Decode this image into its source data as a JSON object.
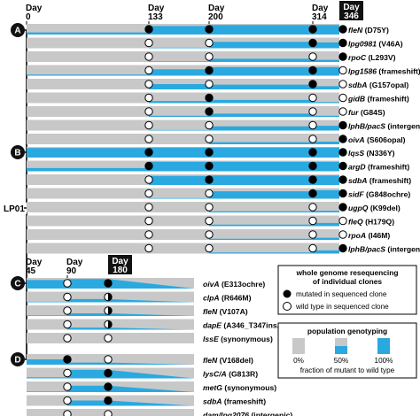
{
  "origin_label": "LP01",
  "panels": [
    {
      "id": "A",
      "days": [
        {
          "label": "Day",
          "value": "0"
        },
        {
          "label": "Day",
          "value": "133"
        },
        {
          "label": "Day",
          "value": "200"
        },
        {
          "label": "Day",
          "value": "314"
        },
        {
          "label": "Day",
          "value": "346",
          "boxed": true
        }
      ],
      "rows": [
        {
          "gene": "fleN",
          "change": "(D75Y)",
          "clones": [
            "mut",
            "mut",
            "mut",
            "mut"
          ],
          "freq": [
            0.0,
            0.2,
            0.8,
            0.9,
            0.9
          ]
        },
        {
          "gene": "lpg0981",
          "change": "(V46A)",
          "clones": [
            "wt",
            "wt",
            "mut",
            "mut"
          ],
          "freq": [
            0.0,
            0.0,
            0.05,
            0.6,
            0.55
          ]
        },
        {
          "gene": "rpoC",
          "change": "(L293V)",
          "clones": [
            "wt",
            "wt",
            "wt",
            "mut"
          ],
          "freq": [
            0.0,
            0.0,
            0.05,
            0.3,
            0.2
          ]
        },
        {
          "gene": "lpg1586",
          "change": "(frameshift)",
          "clones": [
            "wt",
            "mut",
            "mut",
            "wt"
          ],
          "freq": [
            0.0,
            0.1,
            0.6,
            0.8,
            0.8
          ]
        },
        {
          "gene": "sdbA",
          "change": "(G157opal)",
          "clones": [
            "wt",
            "wt",
            "mut",
            "wt"
          ],
          "freq": [
            0.0,
            0.0,
            0.5,
            0.45,
            0.3
          ]
        },
        {
          "gene": "gidB",
          "change": "(frameshift)",
          "clones": [
            "wt",
            "mut",
            "wt",
            "wt"
          ],
          "freq": [
            0.0,
            0.0,
            0.2,
            0.3,
            0.1
          ]
        },
        {
          "gene": "fur",
          "change": "(G84S)",
          "clones": [
            "wt",
            "mut",
            "wt",
            "wt"
          ],
          "freq": [
            0.0,
            0.0,
            0.1,
            0.3,
            0.1
          ]
        },
        {
          "gene": "lphB/pacS",
          "change": "(intergenic)",
          "clones": [
            "wt",
            "wt",
            "wt",
            "mut"
          ],
          "freq": [
            0.0,
            0.0,
            0.05,
            0.4,
            0.45
          ]
        },
        {
          "gene": "oivA",
          "change": "(S606opal)",
          "clones": [
            "wt",
            "wt",
            "wt",
            "mut"
          ],
          "freq": [
            0.0,
            0.0,
            0.0,
            0.2,
            0.25
          ]
        }
      ]
    },
    {
      "id": "B",
      "days": [],
      "rows": [
        {
          "gene": "lqsS",
          "change": "(N336Y)",
          "clones": [
            "mut",
            "mut",
            "mut",
            "mut"
          ],
          "freq": [
            0.0,
            0.9,
            0.95,
            0.95,
            0.95
          ]
        },
        {
          "gene": "argD",
          "change": "(frameshift)",
          "clones": [
            "mut",
            "mut",
            "mut",
            "mut"
          ],
          "freq": [
            0.0,
            0.3,
            0.9,
            0.9,
            0.9
          ]
        },
        {
          "gene": "sdbA",
          "change": "(frameshift)",
          "clones": [
            "wt",
            "mut",
            "mut",
            "mut"
          ],
          "freq": [
            0.0,
            0.0,
            0.85,
            0.9,
            0.9
          ]
        },
        {
          "gene": "sidF",
          "change": "(G848ochre)",
          "clones": [
            "wt",
            "wt",
            "mut",
            "mut"
          ],
          "freq": [
            0.0,
            0.0,
            0.05,
            0.7,
            0.8
          ]
        },
        {
          "gene": "ugpQ",
          "change": "(K99del)",
          "clones": [
            "wt",
            "wt",
            "wt",
            "mut"
          ],
          "freq": [
            0.0,
            0.0,
            0.0,
            0.1,
            0.15
          ]
        },
        {
          "gene": "fleQ",
          "change": "(H179Q)",
          "clones": [
            "wt",
            "wt",
            "wt",
            "wt"
          ],
          "freq": [
            0.0,
            0.0,
            0.0,
            0.15,
            0.3
          ]
        },
        {
          "gene": "rpoA",
          "change": "(I46M)",
          "clones": [
            "wt",
            "wt",
            "wt",
            "wt"
          ],
          "freq": [
            0.0,
            0.0,
            0.0,
            0.1,
            0.2
          ]
        },
        {
          "gene": "lphB/pacS",
          "change": "(intergenic)",
          "clones": [
            "wt",
            "wt",
            "wt",
            "mut"
          ],
          "freq": [
            0.0,
            0.0,
            0.0,
            0.1,
            0.3
          ]
        }
      ]
    },
    {
      "id": "C",
      "days": [
        {
          "label": "Day",
          "value": "45"
        },
        {
          "label": "Day",
          "value": "90"
        },
        {
          "label": "Day",
          "value": "180",
          "boxed": true
        }
      ],
      "rows": [
        {
          "gene": "oivA",
          "change": "(E313ochre)",
          "clones": [
            "wt",
            "mut"
          ],
          "freq": [
            0.0,
            0.8,
            0.9
          ]
        },
        {
          "gene": "clpA",
          "change": "(R646M)",
          "clones": [
            "wt",
            "half"
          ],
          "freq": [
            0.0,
            0.05,
            0.3
          ]
        },
        {
          "gene": "fleN",
          "change": "(V107A)",
          "clones": [
            "wt",
            "half"
          ],
          "freq": [
            0.0,
            0.05,
            0.25
          ]
        },
        {
          "gene": "dapE",
          "change": "(A346_T347insA)",
          "clones": [
            "wt",
            "half"
          ],
          "freq": [
            0.0,
            0.0,
            0.2
          ]
        },
        {
          "gene": "lssE",
          "change": "(synonymous)",
          "clones": [
            "wt",
            "wt"
          ],
          "freq": [
            0.0,
            0.0,
            0.0
          ]
        }
      ]
    },
    {
      "id": "D",
      "days": [],
      "rows": [
        {
          "gene": "fleN",
          "change": "(V168del)",
          "clones": [
            "mut",
            "wt"
          ],
          "freq": [
            0.0,
            0.5,
            0.2
          ]
        },
        {
          "gene": "lysC/A",
          "change": "(G813R)",
          "clones": [
            "wt",
            "mut"
          ],
          "freq": [
            0.0,
            0.1,
            0.8
          ]
        },
        {
          "gene": "metG",
          "change": "(synonymous)",
          "clones": [
            "wt",
            "mut"
          ],
          "freq": [
            0.0,
            0.05,
            0.6
          ]
        },
        {
          "gene": "sdbA",
          "change": "(frameshift)",
          "clones": [
            "wt",
            "mut"
          ],
          "freq": [
            0.0,
            0.0,
            0.5
          ]
        },
        {
          "gene": "dam/lpg2076",
          "change": "(intergenic)",
          "clones": [
            "wt",
            "wt"
          ],
          "freq": [
            0.0,
            0.0,
            0.15
          ]
        }
      ]
    }
  ],
  "legend": {
    "wgs": {
      "title_line1": "whole genome resequencing",
      "title_line2": "of individual clones",
      "mutated": "mutated in sequenced clone",
      "wildtype": "wild type in sequenced clone"
    },
    "pop": {
      "title": "population genotyping",
      "levels": [
        "0%",
        "50%",
        "100%"
      ],
      "level_values": [
        0,
        0.5,
        1
      ],
      "caption": "fraction of mutant to wild type"
    }
  },
  "colors": {
    "mutant": "#2aa9e0",
    "wildtype": "#c8c8c8",
    "clone_mut": "#000000",
    "clone_wt": "#ffffff"
  }
}
